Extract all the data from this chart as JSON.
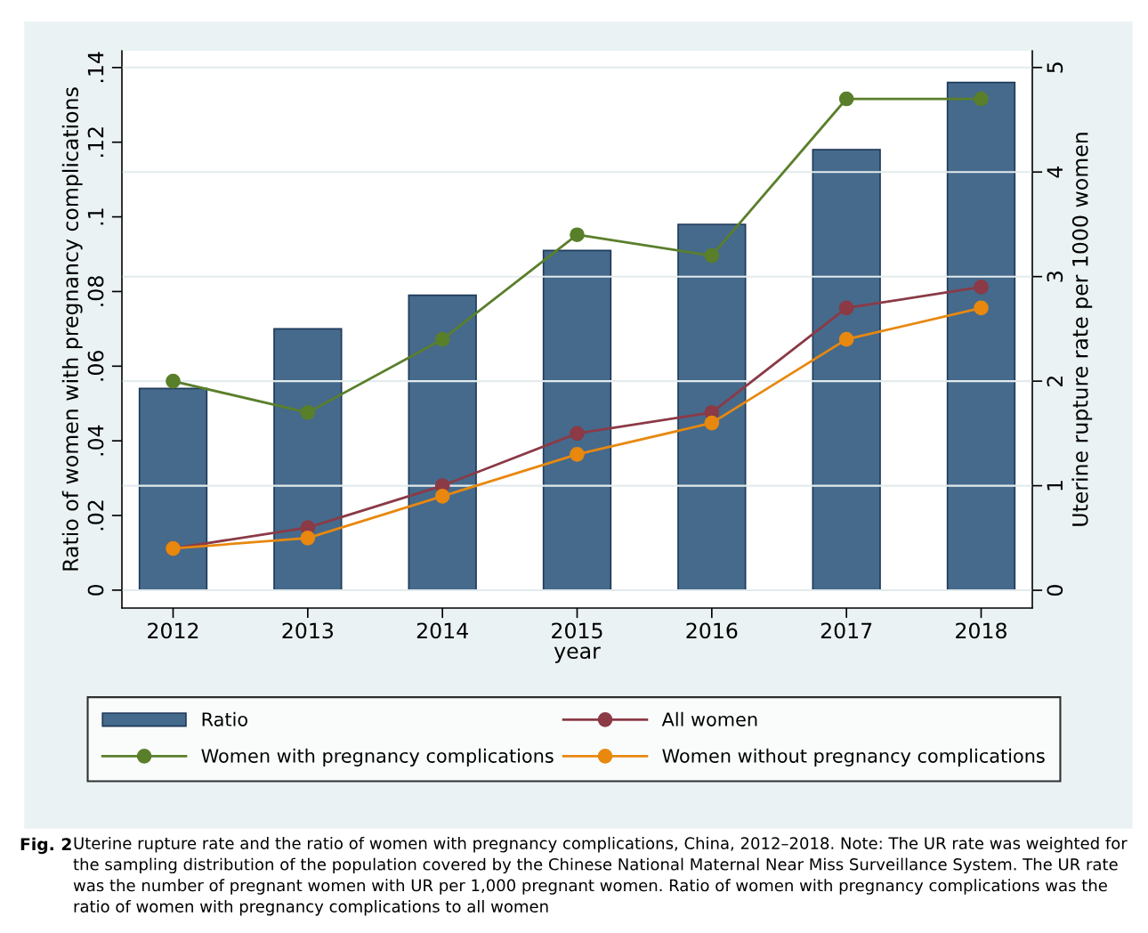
{
  "chart_data": {
    "type": "bar",
    "categories": [
      "2012",
      "2013",
      "2014",
      "2015",
      "2016",
      "2017",
      "2018"
    ],
    "xlabel": "year",
    "ylabel": "Ratio of women with pregnancy complications",
    "y2label": "Uterine rupture rate per 1000 women",
    "ylim": [
      -0.0048,
      0.1445
    ],
    "yticks": [
      {
        "value": 0,
        "label": "0"
      },
      {
        "value": 0.02,
        "label": ".02"
      },
      {
        "value": 0.04,
        "label": ".04"
      },
      {
        "value": 0.06,
        "label": ".06"
      },
      {
        "value": 0.08,
        "label": ".08"
      },
      {
        "value": 0.1,
        "label": ".1"
      },
      {
        "value": 0.12,
        "label": ".12"
      },
      {
        "value": 0.14,
        "label": ".14"
      }
    ],
    "y2lim": [
      -0.17,
      5.16
    ],
    "y2ticks": [
      0,
      1,
      2,
      3,
      4,
      5
    ],
    "grid": "y2",
    "legend": "bottom",
    "marker": "circle",
    "line_style": "solid",
    "series": [
      {
        "name": "Ratio",
        "color": "#456a8c",
        "values": [
          0.054,
          0.07,
          0.079,
          0.091,
          0.098,
          0.118,
          0.136
        ]
      },
      {
        "name": "All women",
        "type": "line",
        "axis": "y2",
        "color": "#8b3a46",
        "values": [
          0.4,
          0.6,
          1.0,
          1.5,
          1.7,
          2.7,
          2.9
        ]
      },
      {
        "name": "Women with pregnancy complications",
        "type": "line",
        "axis": "y2",
        "color": "#5a7f2b",
        "values": [
          2.0,
          1.7,
          2.4,
          3.4,
          3.2,
          4.7,
          4.7
        ]
      },
      {
        "name": "Women without pregnancy complications",
        "type": "line",
        "axis": "y2",
        "color": "#e8880f",
        "values": [
          0.4,
          0.5,
          0.9,
          1.3,
          1.6,
          2.4,
          2.7
        ]
      }
    ],
    "annotations": [
      "Fig. 2",
      "Uterine rupture rate and the ratio of women with pregnancy complications, China, 2012–2018. Note: The UR rate was weighted for the sampling distribution of the population covered by the Chinese National Maternal Near Miss Surveillance System. The UR rate was the number of pregnant women with UR per 1,000 pregnant women. Ratio of women with pregnancy complications was the ratio of women with pregnancy complications to all women"
    ]
  }
}
